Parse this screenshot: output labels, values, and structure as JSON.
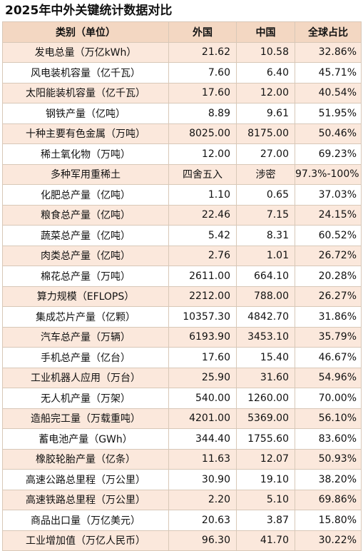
{
  "title": "2025年中外关键统计数据对比",
  "headers": [
    "类别（单位）",
    "外国",
    "中国",
    "全球占比"
  ],
  "rows": [
    {
      "name": "发电总量（万亿kWh）",
      "foreign": "21.62",
      "china": "10.58",
      "share": "32.86%"
    },
    {
      "name": "风电装机容量（亿千瓦）",
      "foreign": "7.60",
      "china": "6.40",
      "share": "45.71%"
    },
    {
      "name": "太阳能装机容量（亿千瓦）",
      "foreign": "17.60",
      "china": "12.00",
      "share": "40.54%"
    },
    {
      "name": "钢铁产量（亿吨）",
      "foreign": "8.89",
      "china": "9.61",
      "share": "51.95%"
    },
    {
      "name": "十种主要有色金属（万吨）",
      "foreign": "8025.00",
      "china": "8175.00",
      "share": "50.46%"
    },
    {
      "name": "稀土氧化物（万吨）",
      "foreign": "12.00",
      "china": "27.00",
      "share": "69.23%"
    },
    {
      "name": "多种军用重稀土",
      "foreign": "四舍五入",
      "china": "涉密",
      "share": "97.3%-100%"
    },
    {
      "name": "化肥总产量（亿吨）",
      "foreign": "1.10",
      "china": "0.65",
      "share": "37.03%"
    },
    {
      "name": "粮食总产量（亿吨）",
      "foreign": "22.46",
      "china": "7.15",
      "share": "24.15%"
    },
    {
      "name": "蔬菜总产量（亿吨）",
      "foreign": "5.42",
      "china": "8.31",
      "share": "60.52%"
    },
    {
      "name": "肉类总产量（亿吨）",
      "foreign": "2.76",
      "china": "1.01",
      "share": "26.72%"
    },
    {
      "name": "棉花总产量（万吨）",
      "foreign": "2611.00",
      "china": "664.10",
      "share": "20.28%"
    },
    {
      "name": "算力规模（EFLOPS）",
      "foreign": "2212.00",
      "china": "788.00",
      "share": "26.27%"
    },
    {
      "name": "集成芯片产量（亿颗）",
      "foreign": "10357.30",
      "china": "4842.70",
      "share": "31.86%"
    },
    {
      "name": "汽车总产量（万辆）",
      "foreign": "6193.90",
      "china": "3453.10",
      "share": "35.79%"
    },
    {
      "name": "手机总产量（亿台）",
      "foreign": "17.60",
      "china": "15.40",
      "share": "46.67%"
    },
    {
      "name": "工业机器人应用（万台）",
      "foreign": "25.90",
      "china": "31.60",
      "share": "54.96%"
    },
    {
      "name": "无人机产量（万架）",
      "foreign": "540.00",
      "china": "1260.00",
      "share": "70.00%"
    },
    {
      "name": "造船完工量（万载重吨）",
      "foreign": "4201.00",
      "china": "5369.00",
      "share": "56.10%"
    },
    {
      "name": "蓄电池产量（GWh）",
      "foreign": "344.40",
      "china": "1755.60",
      "share": "83.60%"
    },
    {
      "name": "橡胶轮胎产量（亿条）",
      "foreign": "11.63",
      "china": "12.07",
      "share": "50.93%"
    },
    {
      "name": "高速公路总里程（万公里）",
      "foreign": "30.90",
      "china": "19.10",
      "share": "38.20%"
    },
    {
      "name": "高速铁路总里程（万公里）",
      "foreign": "2.20",
      "china": "5.10",
      "share": "69.86%"
    },
    {
      "name": "商品出口量（万亿美元）",
      "foreign": "20.63",
      "china": "3.87",
      "share": "15.80%"
    },
    {
      "name": "工业增加值（万亿人民币）",
      "foreign": "96.30",
      "china": "41.70",
      "share": "30.22%"
    }
  ]
}
